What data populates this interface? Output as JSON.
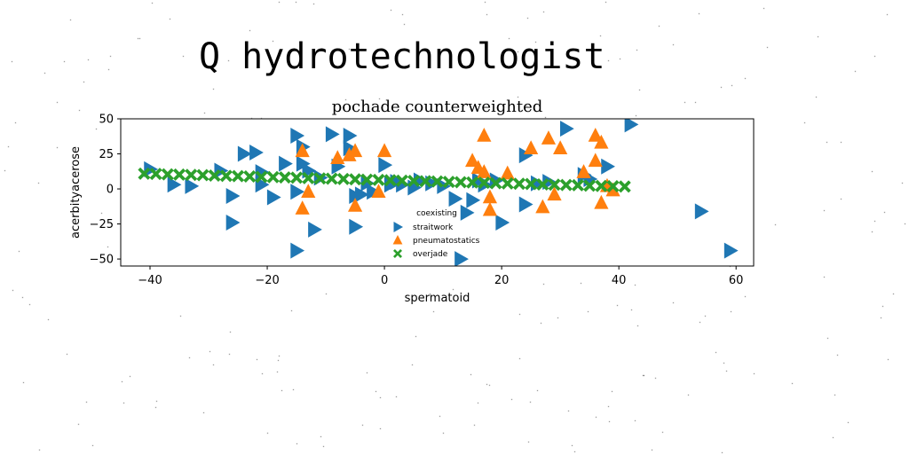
{
  "suptitle": "Q hydrotechnologist",
  "chart_data": {
    "type": "scatter",
    "title": "pochade counterweighted",
    "xlabel": "spermatoid",
    "ylabel": "acerbityacerose",
    "xlim": [
      -45,
      63
    ],
    "ylim": [
      -55,
      50
    ],
    "xticks": [
      -40,
      -20,
      0,
      20,
      40,
      60
    ],
    "yticks": [
      -50,
      -25,
      0,
      25,
      50
    ],
    "grid": false,
    "legend": {
      "title": "coexisting",
      "placement": "lower-center"
    },
    "series": [
      {
        "name": "straitwork",
        "marker": "triangle-right",
        "color": "#1f77b4",
        "x": [
          -40,
          -36,
          -33,
          -28,
          -26,
          -26,
          -24,
          -22,
          -21,
          -21,
          -19,
          -17,
          -15,
          -15,
          -15,
          -14,
          -14,
          -13,
          -12,
          -11,
          -9,
          -8,
          -6,
          -6,
          -5,
          -5,
          -4,
          -3,
          -2,
          0,
          1,
          2,
          3,
          5,
          6,
          8,
          10,
          12,
          13,
          14,
          15,
          16,
          17,
          19,
          20,
          24,
          24,
          26,
          28,
          31,
          34,
          35,
          38,
          42,
          54,
          59
        ],
        "y": [
          14,
          3,
          2,
          13,
          -5,
          -24,
          25,
          26,
          3,
          12,
          -6,
          18,
          38,
          -44,
          -2,
          30,
          18,
          13,
          -29,
          8,
          39,
          16,
          29,
          38,
          -27,
          -5,
          -4,
          4,
          -2,
          17,
          3,
          5,
          3,
          1,
          6,
          4,
          2,
          -7,
          -50,
          -17,
          -8,
          6,
          3,
          6,
          -24,
          -11,
          24,
          4,
          5,
          43,
          10,
          7,
          16,
          46,
          -16,
          -44
        ]
      },
      {
        "name": "pneumatostatics",
        "marker": "triangle-up",
        "color": "#ff7f0e",
        "x": [
          -14,
          -14,
          -13,
          -8,
          -6,
          -5,
          -5,
          -1,
          0,
          15,
          16,
          17,
          17,
          18,
          18,
          21,
          25,
          27,
          28,
          29,
          30,
          34,
          36,
          36,
          37,
          37,
          38,
          39
        ],
        "y": [
          -14,
          27,
          -2,
          22,
          24,
          27,
          -12,
          -2,
          27,
          20,
          15,
          12,
          38,
          -6,
          -15,
          11,
          29,
          -13,
          36,
          -4,
          29,
          12,
          38,
          20,
          33,
          -10,
          2,
          -1
        ]
      },
      {
        "name": "overjade",
        "marker": "x-filled",
        "color": "#2ca02c",
        "x": [
          -41,
          -39,
          -37,
          -35,
          -33,
          -31,
          -29,
          -27,
          -25,
          -23,
          -21,
          -19,
          -17,
          -15,
          -13,
          -11,
          -9,
          -7,
          -5,
          -3,
          -1,
          1,
          3,
          5,
          7,
          9,
          11,
          13,
          15,
          17,
          19,
          21,
          23,
          25,
          27,
          29,
          31,
          33,
          35,
          37,
          39,
          41
        ],
        "y": [
          10.9,
          10.7,
          10.4,
          10.2,
          10,
          9.8,
          9.5,
          9.3,
          9.1,
          8.9,
          8.6,
          8.4,
          8.2,
          8,
          7.7,
          7.5,
          7.3,
          7.1,
          6.8,
          6.6,
          6.4,
          6.2,
          5.9,
          5.7,
          5.5,
          5.3,
          5,
          4.8,
          4.6,
          4.4,
          4.1,
          3.9,
          3.7,
          3.5,
          3.2,
          3,
          2.8,
          2.6,
          2.3,
          2.1,
          1.9,
          1.7
        ]
      }
    ]
  }
}
